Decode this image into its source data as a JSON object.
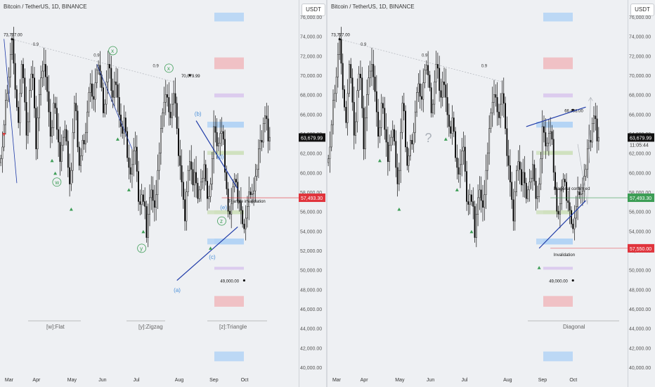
{
  "chart_data": [
    {
      "type": "candlestick",
      "title": "Bitcoin / TetherUS, 1D, BINANCE",
      "currency": "USDT",
      "x_ticks": [
        "Mar",
        "Apr",
        "May",
        "Jun",
        "Jul",
        "Aug",
        "Sep",
        "Oct"
      ],
      "y_ticks": [
        "40,000.00",
        "42,000.00",
        "44,000.00",
        "46,000.00",
        "48,000.00",
        "50,000.00",
        "52,000.00",
        "54,000.00",
        "56,000.00",
        "58,000.00",
        "60,000.00",
        "62,000.00",
        "64,000.00",
        "66,000.00",
        "68,000.00",
        "70,000.00",
        "72,000.00",
        "74,000.00",
        "76,000.00"
      ],
      "ylim": [
        39500,
        76500
      ],
      "last_price": "63,679.99",
      "line_price": "57,493.30",
      "price_labels": [
        {
          "text": "73,777.00",
          "price": 73777
        },
        {
          "text": "70,079.99",
          "price": 70080
        },
        {
          "text": "49,000.00",
          "price": 49000
        }
      ],
      "fib_labels": [
        "0.9",
        "0.9",
        "0.9"
      ],
      "wave_labels_green": [
        "x",
        "x",
        "w",
        "y",
        "z"
      ],
      "wave_labels_blue": [
        "(b)",
        "(d)",
        "(e)",
        "(c)",
        "(a)"
      ],
      "annotations": [
        "Triangle invalidation"
      ],
      "pattern_labels": [
        "[w]:Flat",
        "[y]:Zigzag",
        "[z]:Triangle"
      ],
      "zones": [
        {
          "color": "#b3d3f4",
          "from": 75600,
          "to": 76500
        },
        {
          "color": "#f0b9bc",
          "from": 70700,
          "to": 71900
        },
        {
          "color": "#d8c6ec",
          "from": 67800,
          "to": 68200
        },
        {
          "color": "#b3d3f4",
          "from": 64700,
          "to": 65300
        },
        {
          "color": "#cfe0bd",
          "from": 61900,
          "to": 62300
        },
        {
          "color": "#cfe0bd",
          "from": 55800,
          "to": 56200
        },
        {
          "color": "#b3d3f4",
          "from": 52700,
          "to": 53300
        },
        {
          "color": "#d8c6ec",
          "from": 50100,
          "to": 50400
        },
        {
          "color": "#f0b9bc",
          "from": 46300,
          "to": 47400
        },
        {
          "color": "#b3d3f4",
          "from": 40700,
          "to": 41700
        }
      ],
      "colors": {
        "up": "#ffffff",
        "down": "#000000",
        "line": "#1f3ba8",
        "green": "#3c9d55",
        "blue": "#4a90d9",
        "red": "#d93a3a",
        "last": "#000000",
        "line_price": "#e0343c"
      }
    },
    {
      "type": "candlestick",
      "title": "Bitcoin / TetherUS, 1D, BINANCE",
      "currency": "USDT",
      "x_ticks": [
        "Mar",
        "Apr",
        "May",
        "Jun",
        "Jul",
        "Aug",
        "Sep",
        "Oct"
      ],
      "y_ticks": [
        "40,000.00",
        "42,000.00",
        "44,000.00",
        "46,000.00",
        "48,000.00",
        "50,000.00",
        "52,000.00",
        "54,000.00",
        "56,000.00",
        "58,000.00",
        "60,000.00",
        "62,000.00",
        "64,000.00",
        "66,000.00",
        "68,000.00",
        "70,000.00",
        "72,000.00",
        "74,000.00",
        "76,000.00"
      ],
      "ylim": [
        39500,
        76500
      ],
      "last_price": "63,679.99",
      "countdown": "11:05:44",
      "green_price": "57,493.30",
      "red_price": "57,550.00",
      "price_labels": [
        {
          "text": "73,777.00",
          "price": 73777
        },
        {
          "text": "66,498.00",
          "price": 66498
        },
        {
          "text": "49,000.00",
          "price": 49000
        }
      ],
      "fib_labels": [
        "0.9",
        "0.9",
        "0.9"
      ],
      "question": "?",
      "annotations": [
        "Diagonal confirmed",
        "Invalidation"
      ],
      "pattern_labels": [
        "Diagonal"
      ],
      "zones": [
        {
          "color": "#b3d3f4",
          "from": 75600,
          "to": 76500
        },
        {
          "color": "#f0b9bc",
          "from": 70700,
          "to": 71900
        },
        {
          "color": "#d8c6ec",
          "from": 67800,
          "to": 68200
        },
        {
          "color": "#b3d3f4",
          "from": 64700,
          "to": 65300
        },
        {
          "color": "#cfe0bd",
          "from": 61900,
          "to": 62300
        },
        {
          "color": "#cfe0bd",
          "from": 55800,
          "to": 56200
        },
        {
          "color": "#b3d3f4",
          "from": 52700,
          "to": 53300
        },
        {
          "color": "#d8c6ec",
          "from": 50100,
          "to": 50400
        },
        {
          "color": "#f0b9bc",
          "from": 46300,
          "to": 47400
        },
        {
          "color": "#b3d3f4",
          "from": 40700,
          "to": 41700
        }
      ]
    }
  ],
  "series_close": [
    61500,
    62700,
    65000,
    67500,
    68200,
    69900,
    72200,
    73777,
    71300,
    68600,
    66800,
    65200,
    68200,
    71200,
    69800,
    67300,
    63900,
    65300,
    68500,
    70200,
    69800,
    66700,
    62500,
    65700,
    68100,
    69800,
    70500,
    71200,
    69900,
    68400,
    66300,
    63800,
    64700,
    67200,
    66700,
    64500,
    63200,
    61200,
    62900,
    63700,
    64500,
    63300,
    60600,
    58900,
    60300,
    64200,
    67200,
    66400,
    62700,
    60800,
    61800,
    63400,
    63000,
    64200,
    66300,
    68300,
    69200,
    67900,
    67600,
    69300,
    70600,
    71100,
    70100,
    68800,
    66200,
    67100,
    69400,
    71200,
    70800,
    68500,
    67800,
    69400,
    69100,
    67800,
    66000,
    64800,
    64100,
    65700,
    64300,
    61600,
    60600,
    59900,
    60900,
    62300,
    62700,
    60200,
    57100,
    56800,
    57800,
    57100,
    56600,
    53400,
    55800,
    57500,
    58300,
    57200,
    56500,
    57800,
    60300,
    62100,
    64600,
    66200,
    67300,
    68100,
    67800,
    66300,
    65700,
    67100,
    68200,
    67200,
    64600,
    61800,
    60800,
    59100,
    57300,
    55100,
    58100,
    60300,
    61200,
    60400,
    58800,
    60100,
    59000,
    57400,
    58300,
    59100,
    59500,
    60900,
    59200,
    57400,
    57600,
    58900,
    61500,
    64800,
    64200,
    62800,
    63100,
    64100,
    64300,
    63500,
    60100,
    58400,
    56100,
    55800,
    56900,
    58600,
    59400,
    59100,
    57200,
    57000,
    56200,
    54800,
    54300,
    55400,
    56600,
    58100,
    57800,
    57900,
    58200,
    59700,
    60400,
    62500,
    63400,
    63200,
    65100,
    65900,
    65600,
    63300,
    63700
  ]
}
